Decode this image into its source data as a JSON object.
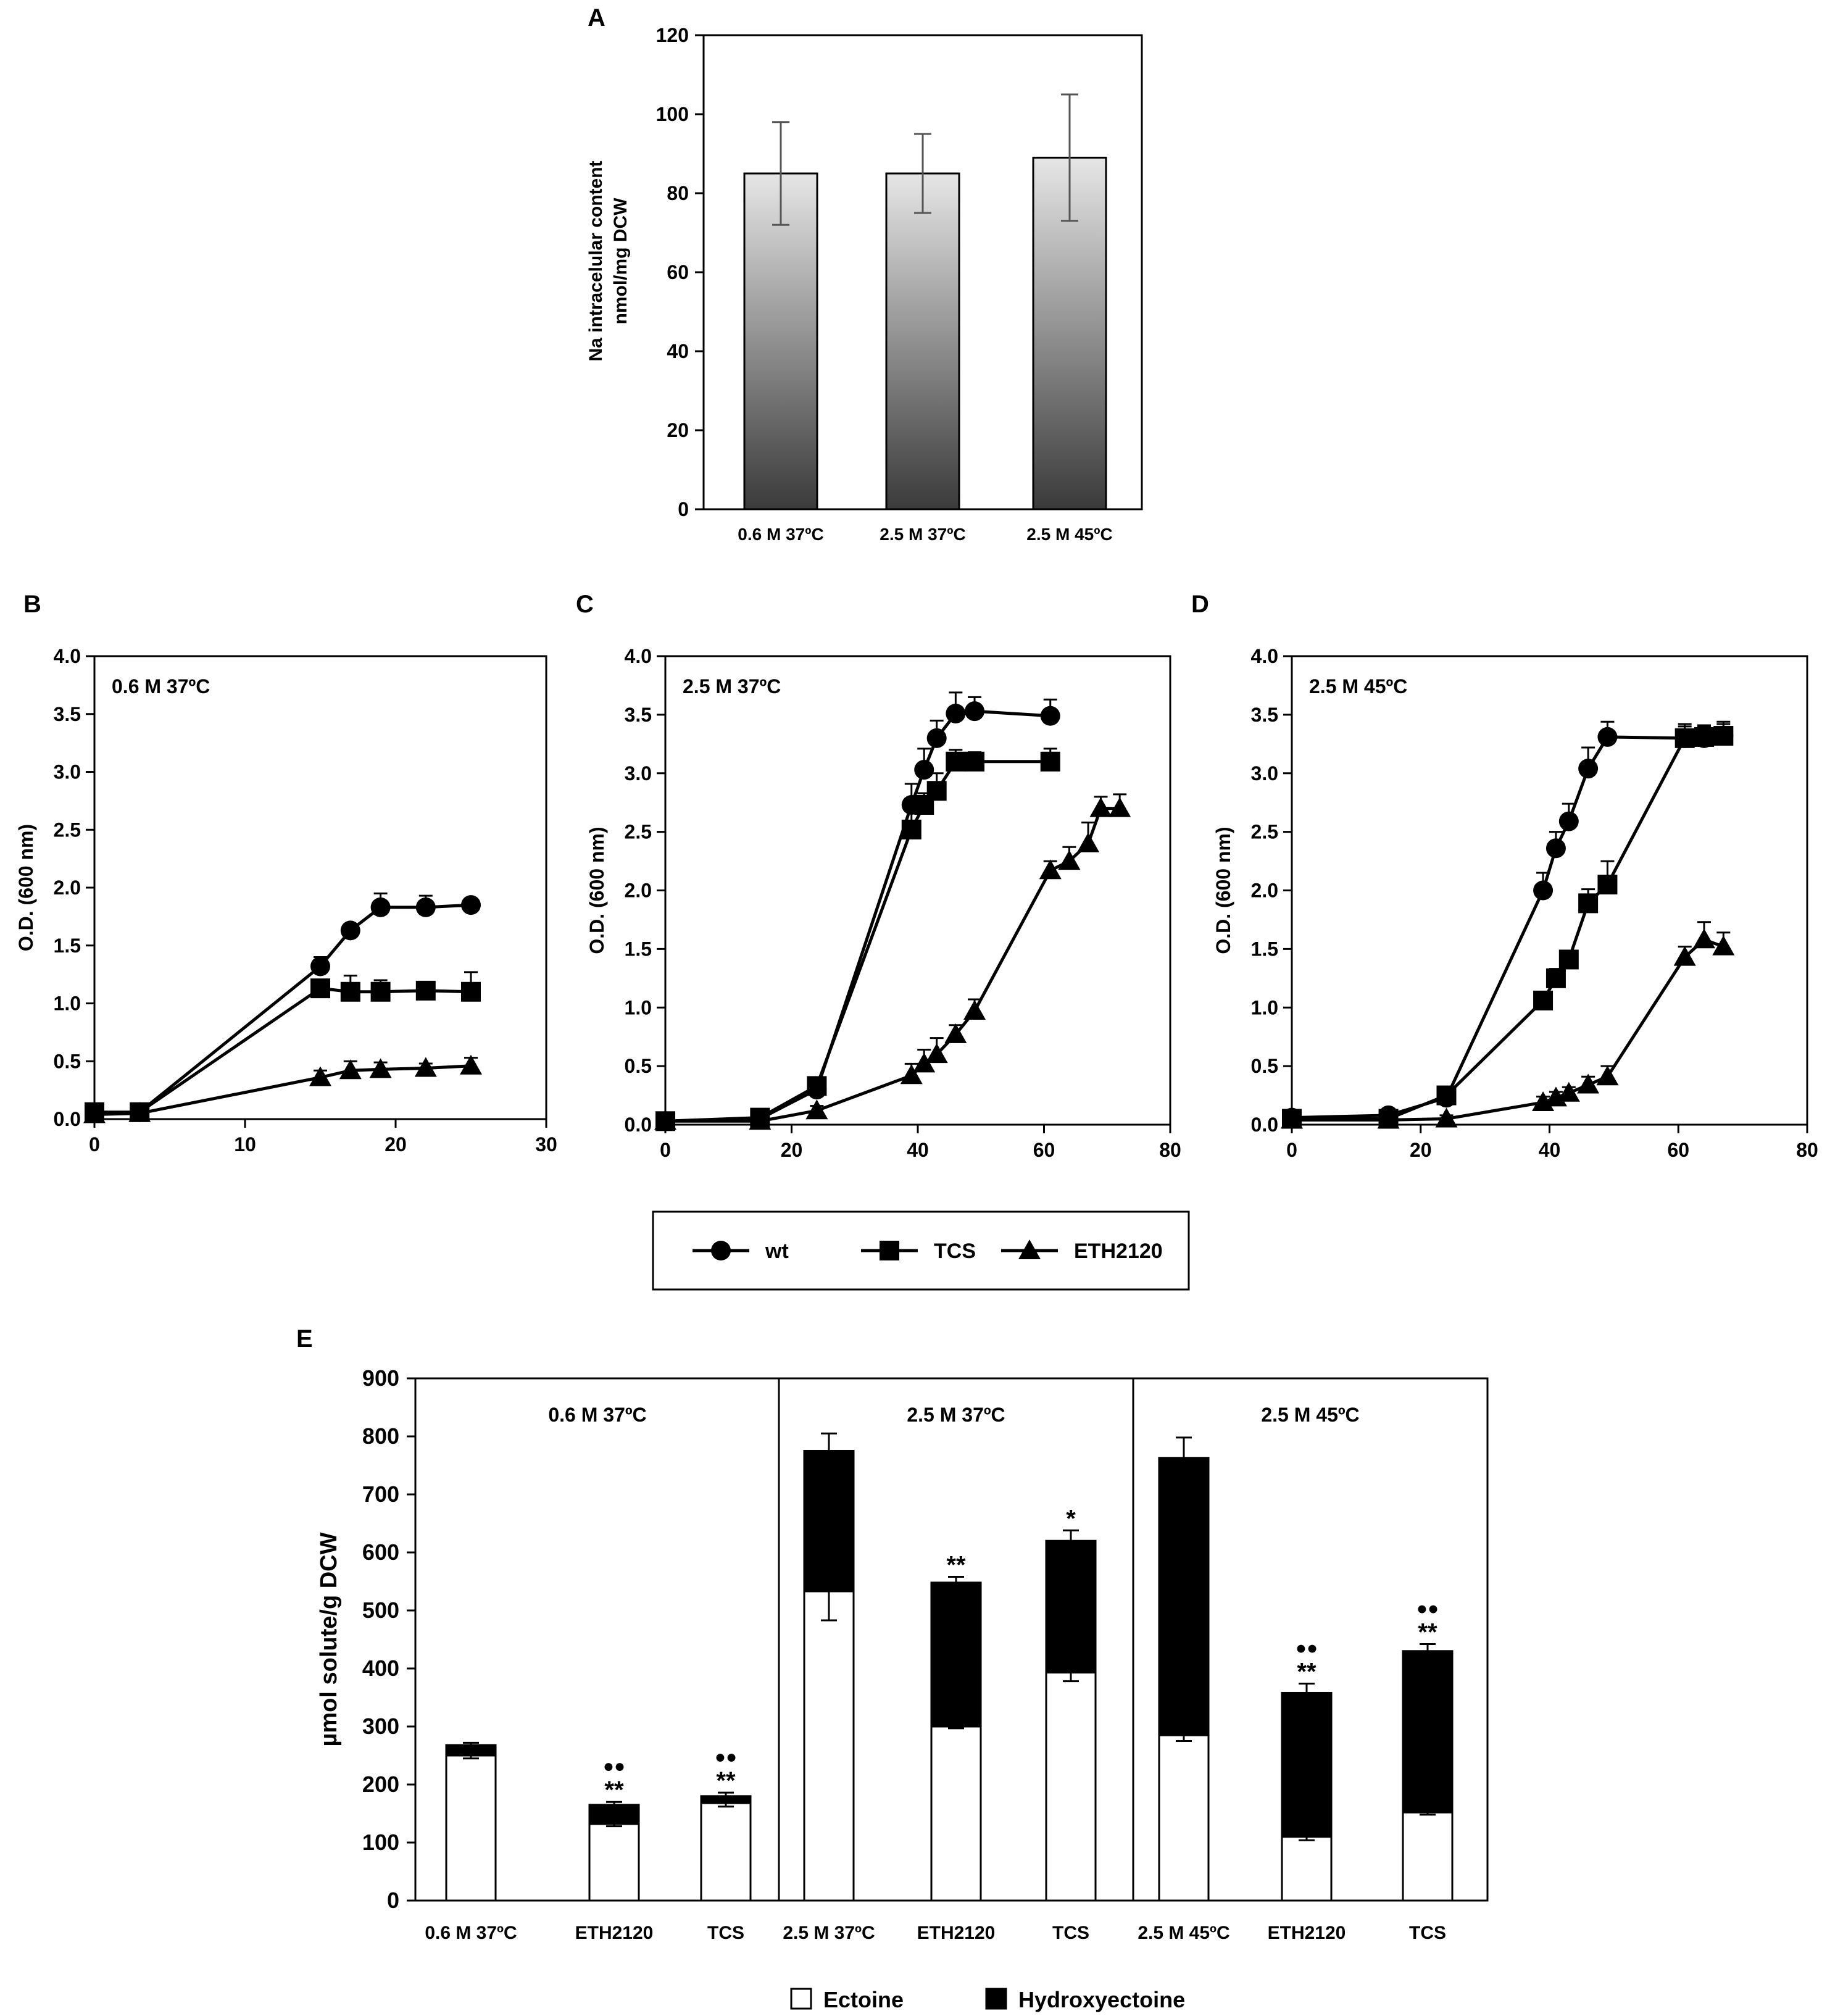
{
  "colors": {
    "axis": "#000000",
    "bar_top": "#e6e6e6",
    "bar_bottom": "#3a3a3a",
    "error_gray": "#555555",
    "ectoine": "#ffffff",
    "hydroxyectoine": "#000000"
  },
  "legend_growth": {
    "items": [
      {
        "label": "wt",
        "marker": "circle"
      },
      {
        "label": "TCS",
        "marker": "square"
      },
      {
        "label": "ETH2120",
        "marker": "triangle"
      }
    ]
  },
  "legend_solutes": {
    "items": [
      {
        "label": "Ectoine",
        "fill": "#ffffff"
      },
      {
        "label": "Hydroxyectoine",
        "fill": "#000000"
      }
    ]
  },
  "chart_data": [
    {
      "panel": "A",
      "type": "bar",
      "title": "",
      "xlabel": "",
      "ylabel_lines": [
        "Na intracelular content",
        "nmol/mg DCW"
      ],
      "categories": [
        "0.6 M 37ºC",
        "2.5 M 37ºC",
        "2.5 M 45ºC"
      ],
      "values": [
        85,
        85,
        89
      ],
      "errors": [
        13,
        10,
        16
      ],
      "ylim": [
        0,
        120
      ],
      "yticks": [
        0,
        20,
        40,
        60,
        80,
        100,
        120
      ],
      "ytick_labels": [
        "0",
        "20",
        "40",
        "60",
        "80",
        "100",
        "120"
      ]
    },
    {
      "panel": "B",
      "type": "line",
      "inset_label": "0.6 M 37ºC",
      "ylabel": "O.D. (600 nm)",
      "xlim": [
        0,
        30
      ],
      "xticks": [
        0,
        10,
        20,
        30
      ],
      "ylim": [
        0,
        4
      ],
      "yticks": [
        0,
        0.5,
        1,
        1.5,
        2,
        2.5,
        3,
        3.5,
        4
      ],
      "ytick_labels": [
        "0.0",
        "0.5",
        "1.0",
        "1.5",
        "2.0",
        "2.5",
        "3.0",
        "3.5",
        "4.0"
      ],
      "series": [
        {
          "name": "wt",
          "marker": "circle",
          "x": [
            0,
            3,
            15,
            17,
            19,
            22,
            25
          ],
          "y": [
            0.05,
            0.06,
            1.32,
            1.63,
            1.83,
            1.83,
            1.85
          ],
          "err": [
            0.03,
            0.02,
            0.08,
            0.05,
            0.12,
            0.1,
            0.04
          ]
        },
        {
          "name": "TCS",
          "marker": "square",
          "x": [
            0,
            3,
            15,
            17,
            19,
            22,
            25
          ],
          "y": [
            0.06,
            0.06,
            1.13,
            1.1,
            1.1,
            1.11,
            1.1
          ],
          "err": [
            0.02,
            0.02,
            0.07,
            0.14,
            0.1,
            0.05,
            0.17
          ]
        },
        {
          "name": "ETH2120",
          "marker": "triangle",
          "x": [
            0,
            3,
            15,
            17,
            19,
            22,
            25
          ],
          "y": [
            0.04,
            0.05,
            0.36,
            0.42,
            0.43,
            0.44,
            0.46
          ],
          "err": [
            0.02,
            0.02,
            0.06,
            0.08,
            0.06,
            0.04,
            0.07
          ]
        }
      ]
    },
    {
      "panel": "C",
      "type": "line",
      "inset_label": "2.5 M 37ºC",
      "ylabel": "O.D. (600 nm)",
      "xlim": [
        0,
        80
      ],
      "xticks": [
        0,
        20,
        40,
        60,
        80
      ],
      "ylim": [
        0,
        4
      ],
      "yticks": [
        0,
        0.5,
        1,
        1.5,
        2,
        2.5,
        3,
        3.5,
        4
      ],
      "ytick_labels": [
        "0.0",
        "0.5",
        "1.0",
        "1.5",
        "2.0",
        "2.5",
        "3.0",
        "3.5",
        "4.0"
      ],
      "series": [
        {
          "name": "wt",
          "marker": "circle",
          "x": [
            0,
            15,
            24,
            39,
            41,
            43,
            46,
            49,
            61
          ],
          "y": [
            0.03,
            0.05,
            0.3,
            2.73,
            3.03,
            3.3,
            3.51,
            3.53,
            3.49
          ],
          "err": [
            0.03,
            0.03,
            0.06,
            0.18,
            0.18,
            0.15,
            0.18,
            0.12,
            0.14
          ]
        },
        {
          "name": "TCS",
          "marker": "square",
          "x": [
            0,
            15,
            24,
            39,
            41,
            43,
            46,
            49,
            61
          ],
          "y": [
            0.03,
            0.06,
            0.33,
            2.52,
            2.73,
            2.85,
            3.1,
            3.1,
            3.1
          ],
          "err": [
            0.03,
            0.03,
            0.06,
            0.18,
            0.1,
            0.15,
            0.1,
            0.08,
            0.11
          ]
        },
        {
          "name": "ETH2120",
          "marker": "triangle",
          "x": [
            0,
            15,
            24,
            39,
            41,
            43,
            46,
            49,
            61,
            64,
            67,
            69,
            72
          ],
          "y": [
            0.03,
            0.03,
            0.12,
            0.42,
            0.52,
            0.6,
            0.77,
            0.97,
            2.17,
            2.25,
            2.4,
            2.7,
            2.7
          ],
          "err": [
            0.02,
            0.02,
            0.04,
            0.1,
            0.12,
            0.14,
            0.08,
            0.1,
            0.08,
            0.12,
            0.18,
            0.1,
            0.12
          ]
        }
      ]
    },
    {
      "panel": "D",
      "type": "line",
      "inset_label": "2.5 M 45ºC",
      "ylabel": "O.D. (600 nm)",
      "xlim": [
        0,
        80
      ],
      "xticks": [
        0,
        20,
        40,
        60,
        80
      ],
      "ylim": [
        0,
        4
      ],
      "yticks": [
        0,
        0.5,
        1,
        1.5,
        2,
        2.5,
        3,
        3.5,
        4
      ],
      "ytick_labels": [
        "0.0",
        "0.5",
        "1.0",
        "1.5",
        "2.0",
        "2.5",
        "3.0",
        "3.5",
        "4.0"
      ],
      "series": [
        {
          "name": "wt",
          "marker": "circle",
          "x": [
            0,
            15,
            24,
            39,
            41,
            43,
            46,
            49,
            61,
            64,
            67
          ],
          "y": [
            0.06,
            0.08,
            0.23,
            2.0,
            2.36,
            2.59,
            3.04,
            3.31,
            3.3,
            3.3,
            3.32
          ],
          "err": [
            0.03,
            0.03,
            0.06,
            0.15,
            0.14,
            0.15,
            0.18,
            0.13,
            0.1,
            0.1,
            0.1
          ]
        },
        {
          "name": "TCS",
          "marker": "square",
          "x": [
            0,
            15,
            24,
            39,
            41,
            43,
            46,
            49,
            61,
            64,
            67
          ],
          "y": [
            0.05,
            0.05,
            0.25,
            1.06,
            1.25,
            1.41,
            1.89,
            2.05,
            3.3,
            3.31,
            3.32
          ],
          "err": [
            0.02,
            0.03,
            0.05,
            0.05,
            0.08,
            0.06,
            0.12,
            0.2,
            0.12,
            0.1,
            0.12
          ]
        },
        {
          "name": "ETH2120",
          "marker": "triangle",
          "x": [
            0,
            15,
            24,
            39,
            41,
            43,
            46,
            49,
            61,
            64,
            67
          ],
          "y": [
            0.04,
            0.04,
            0.05,
            0.19,
            0.23,
            0.27,
            0.34,
            0.41,
            1.43,
            1.58,
            1.52
          ],
          "err": [
            0.02,
            0.02,
            0.03,
            0.05,
            0.05,
            0.05,
            0.07,
            0.09,
            0.09,
            0.15,
            0.12
          ]
        }
      ]
    },
    {
      "panel": "E",
      "type": "bar",
      "stacked": true,
      "ylabel": "µmol solute/g DCW",
      "ylim": [
        0,
        900
      ],
      "yticks": [
        0,
        100,
        200,
        300,
        400,
        500,
        600,
        700,
        800,
        900
      ],
      "ytick_labels": [
        "0",
        "100",
        "200",
        "300",
        "400",
        "500",
        "600",
        "700",
        "800",
        "900"
      ],
      "groups": [
        "0.6 M 37ºC",
        "2.5 M 37ºC",
        "2.5 M 45ºC"
      ],
      "categories": [
        "0.6 M 37ºC",
        "ETH2120",
        "TCS",
        "2.5 M 37ºC",
        "ETH2120",
        "TCS",
        "2.5 M 45ºC",
        "ETH2120",
        "TCS"
      ],
      "series": [
        {
          "name": "Ectoine",
          "values": [
            250,
            132,
            168,
            533,
            300,
            393,
            285,
            110,
            152
          ],
          "err": [
            5,
            4,
            6,
            50,
            3,
            15,
            10,
            6,
            4
          ]
        },
        {
          "name": "Hydroxyectoine",
          "values": [
            18,
            33,
            12,
            242,
            248,
            227,
            478,
            248,
            278
          ],
          "err": [
            4,
            5,
            6,
            30,
            10,
            18,
            35,
            16,
            12
          ]
        }
      ],
      "significance_stars": [
        "",
        "**",
        "**",
        "",
        "**",
        "*",
        "",
        "**",
        "**"
      ],
      "significance_dots": [
        "",
        "●●",
        "●●",
        "",
        "",
        "",
        "",
        "●●",
        "●●"
      ]
    }
  ]
}
